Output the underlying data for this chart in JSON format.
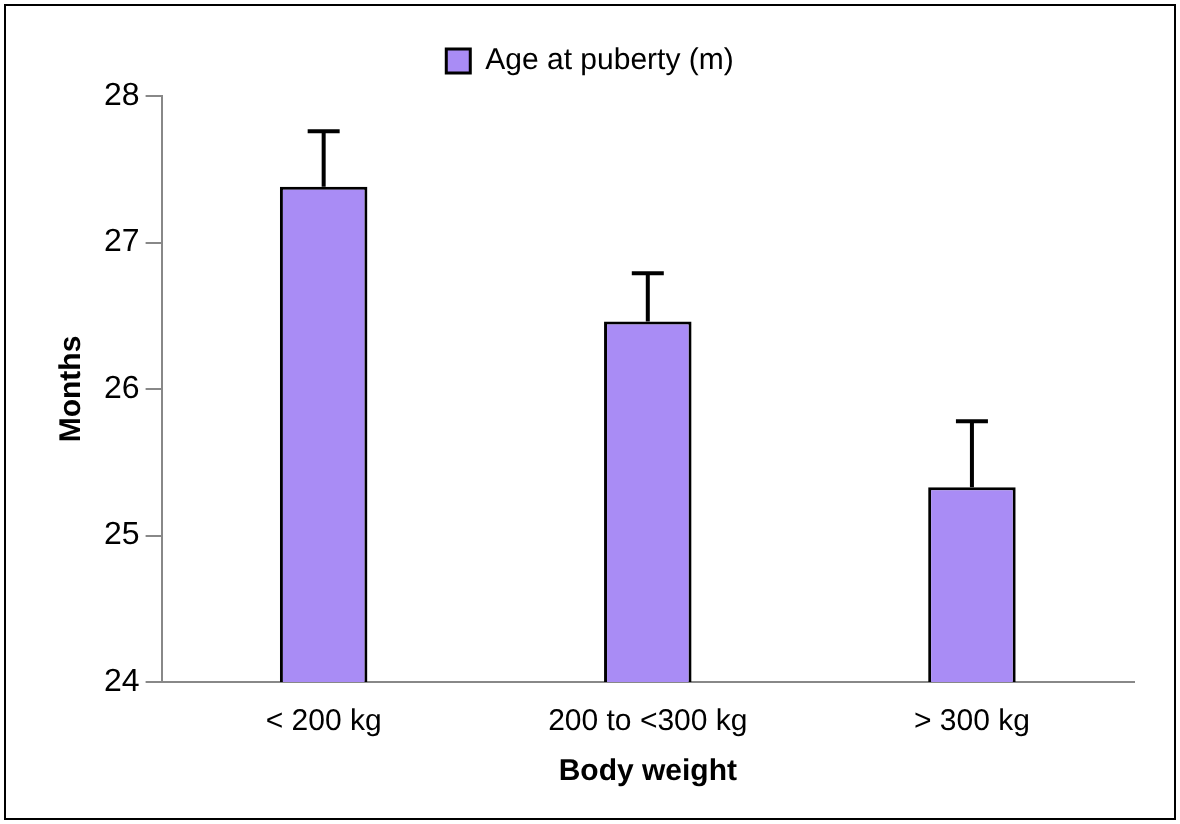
{
  "chart_data": {
    "type": "bar",
    "xlabel": "Body weight",
    "ylabel": "Months",
    "categories": [
      "< 200 kg",
      "200 to <300 kg",
      "> 300 kg"
    ],
    "series": [
      {
        "name": "Age at puberty (m)",
        "color": "#a98cf5",
        "values": [
          27.38,
          26.46,
          25.33
        ],
        "errors": [
          [
            27.38,
            27.76
          ],
          [
            26.46,
            26.79
          ],
          [
            25.33,
            25.78
          ]
        ]
      }
    ],
    "ylim": [
      24,
      28
    ],
    "yticks": [
      24,
      25,
      26,
      27,
      28
    ],
    "grid": false,
    "legend": "top"
  }
}
